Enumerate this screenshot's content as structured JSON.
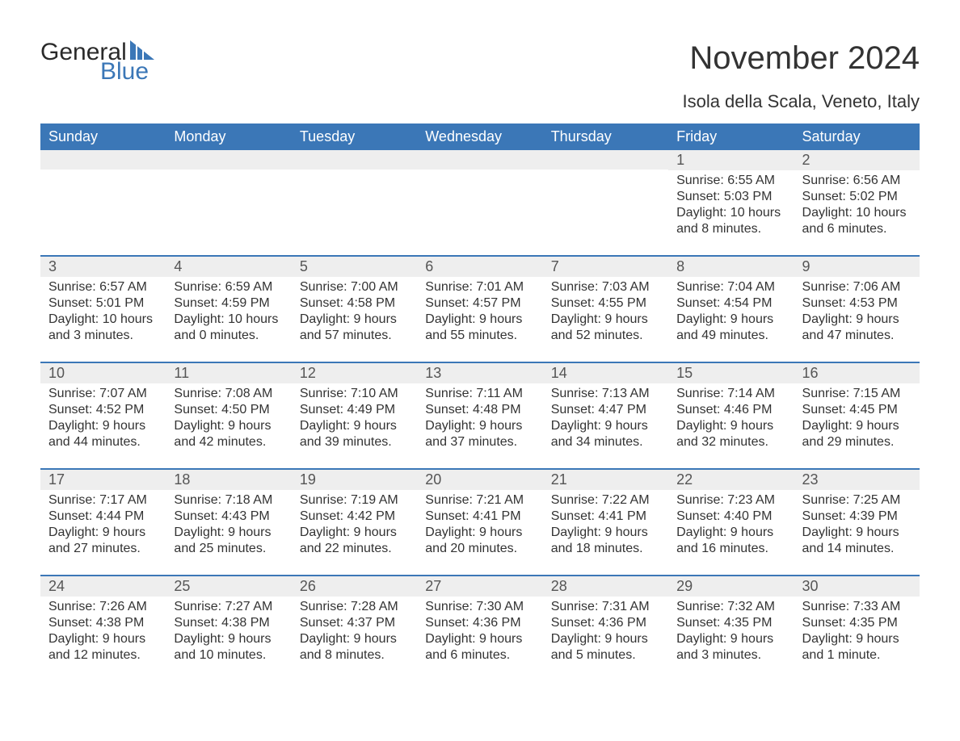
{
  "colors": {
    "header_bg": "#3b77b7",
    "header_text": "#ffffff",
    "cell_band": "#eeeeee",
    "divider": "#3b77b7",
    "text": "#333333",
    "logo_word1": "#2a2a2a",
    "logo_word2": "#3b77b7",
    "page_bg": "#ffffff"
  },
  "typography": {
    "title_fontsize": 40,
    "location_fontsize": 22,
    "dayhead_fontsize": 18,
    "daynum_fontsize": 18,
    "body_fontsize": 16,
    "logo_fontsize": 30,
    "font_family": "Arial"
  },
  "logo": {
    "word1": "General",
    "word2": "Blue"
  },
  "title": "November 2024",
  "location": "Isola della Scala, Veneto, Italy",
  "day_headers": [
    "Sunday",
    "Monday",
    "Tuesday",
    "Wednesday",
    "Thursday",
    "Friday",
    "Saturday"
  ],
  "weeks": [
    [
      {
        "day": "",
        "lines": []
      },
      {
        "day": "",
        "lines": []
      },
      {
        "day": "",
        "lines": []
      },
      {
        "day": "",
        "lines": []
      },
      {
        "day": "",
        "lines": []
      },
      {
        "day": "1",
        "lines": [
          "Sunrise: 6:55 AM",
          "Sunset: 5:03 PM",
          "Daylight: 10 hours and 8 minutes."
        ]
      },
      {
        "day": "2",
        "lines": [
          "Sunrise: 6:56 AM",
          "Sunset: 5:02 PM",
          "Daylight: 10 hours and 6 minutes."
        ]
      }
    ],
    [
      {
        "day": "3",
        "lines": [
          "Sunrise: 6:57 AM",
          "Sunset: 5:01 PM",
          "Daylight: 10 hours and 3 minutes."
        ]
      },
      {
        "day": "4",
        "lines": [
          "Sunrise: 6:59 AM",
          "Sunset: 4:59 PM",
          "Daylight: 10 hours and 0 minutes."
        ]
      },
      {
        "day": "5",
        "lines": [
          "Sunrise: 7:00 AM",
          "Sunset: 4:58 PM",
          "Daylight: 9 hours and 57 minutes."
        ]
      },
      {
        "day": "6",
        "lines": [
          "Sunrise: 7:01 AM",
          "Sunset: 4:57 PM",
          "Daylight: 9 hours and 55 minutes."
        ]
      },
      {
        "day": "7",
        "lines": [
          "Sunrise: 7:03 AM",
          "Sunset: 4:55 PM",
          "Daylight: 9 hours and 52 minutes."
        ]
      },
      {
        "day": "8",
        "lines": [
          "Sunrise: 7:04 AM",
          "Sunset: 4:54 PM",
          "Daylight: 9 hours and 49 minutes."
        ]
      },
      {
        "day": "9",
        "lines": [
          "Sunrise: 7:06 AM",
          "Sunset: 4:53 PM",
          "Daylight: 9 hours and 47 minutes."
        ]
      }
    ],
    [
      {
        "day": "10",
        "lines": [
          "Sunrise: 7:07 AM",
          "Sunset: 4:52 PM",
          "Daylight: 9 hours and 44 minutes."
        ]
      },
      {
        "day": "11",
        "lines": [
          "Sunrise: 7:08 AM",
          "Sunset: 4:50 PM",
          "Daylight: 9 hours and 42 minutes."
        ]
      },
      {
        "day": "12",
        "lines": [
          "Sunrise: 7:10 AM",
          "Sunset: 4:49 PM",
          "Daylight: 9 hours and 39 minutes."
        ]
      },
      {
        "day": "13",
        "lines": [
          "Sunrise: 7:11 AM",
          "Sunset: 4:48 PM",
          "Daylight: 9 hours and 37 minutes."
        ]
      },
      {
        "day": "14",
        "lines": [
          "Sunrise: 7:13 AM",
          "Sunset: 4:47 PM",
          "Daylight: 9 hours and 34 minutes."
        ]
      },
      {
        "day": "15",
        "lines": [
          "Sunrise: 7:14 AM",
          "Sunset: 4:46 PM",
          "Daylight: 9 hours and 32 minutes."
        ]
      },
      {
        "day": "16",
        "lines": [
          "Sunrise: 7:15 AM",
          "Sunset: 4:45 PM",
          "Daylight: 9 hours and 29 minutes."
        ]
      }
    ],
    [
      {
        "day": "17",
        "lines": [
          "Sunrise: 7:17 AM",
          "Sunset: 4:44 PM",
          "Daylight: 9 hours and 27 minutes."
        ]
      },
      {
        "day": "18",
        "lines": [
          "Sunrise: 7:18 AM",
          "Sunset: 4:43 PM",
          "Daylight: 9 hours and 25 minutes."
        ]
      },
      {
        "day": "19",
        "lines": [
          "Sunrise: 7:19 AM",
          "Sunset: 4:42 PM",
          "Daylight: 9 hours and 22 minutes."
        ]
      },
      {
        "day": "20",
        "lines": [
          "Sunrise: 7:21 AM",
          "Sunset: 4:41 PM",
          "Daylight: 9 hours and 20 minutes."
        ]
      },
      {
        "day": "21",
        "lines": [
          "Sunrise: 7:22 AM",
          "Sunset: 4:41 PM",
          "Daylight: 9 hours and 18 minutes."
        ]
      },
      {
        "day": "22",
        "lines": [
          "Sunrise: 7:23 AM",
          "Sunset: 4:40 PM",
          "Daylight: 9 hours and 16 minutes."
        ]
      },
      {
        "day": "23",
        "lines": [
          "Sunrise: 7:25 AM",
          "Sunset: 4:39 PM",
          "Daylight: 9 hours and 14 minutes."
        ]
      }
    ],
    [
      {
        "day": "24",
        "lines": [
          "Sunrise: 7:26 AM",
          "Sunset: 4:38 PM",
          "Daylight: 9 hours and 12 minutes."
        ]
      },
      {
        "day": "25",
        "lines": [
          "Sunrise: 7:27 AM",
          "Sunset: 4:38 PM",
          "Daylight: 9 hours and 10 minutes."
        ]
      },
      {
        "day": "26",
        "lines": [
          "Sunrise: 7:28 AM",
          "Sunset: 4:37 PM",
          "Daylight: 9 hours and 8 minutes."
        ]
      },
      {
        "day": "27",
        "lines": [
          "Sunrise: 7:30 AM",
          "Sunset: 4:36 PM",
          "Daylight: 9 hours and 6 minutes."
        ]
      },
      {
        "day": "28",
        "lines": [
          "Sunrise: 7:31 AM",
          "Sunset: 4:36 PM",
          "Daylight: 9 hours and 5 minutes."
        ]
      },
      {
        "day": "29",
        "lines": [
          "Sunrise: 7:32 AM",
          "Sunset: 4:35 PM",
          "Daylight: 9 hours and 3 minutes."
        ]
      },
      {
        "day": "30",
        "lines": [
          "Sunrise: 7:33 AM",
          "Sunset: 4:35 PM",
          "Daylight: 9 hours and 1 minute."
        ]
      }
    ]
  ]
}
